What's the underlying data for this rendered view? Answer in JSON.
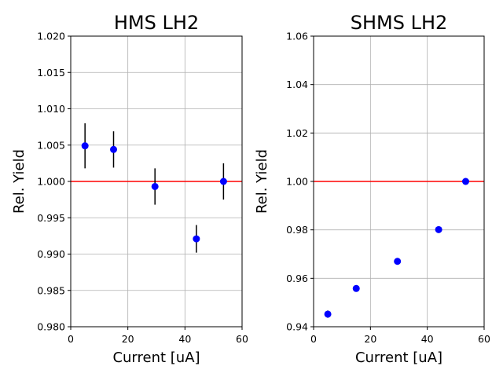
{
  "chart_data": [
    {
      "type": "scatter",
      "title": "HMS LH2",
      "xlabel": "Current [uA]",
      "ylabel": "Rel. Yield",
      "xlim": [
        0,
        60
      ],
      "ylim": [
        0.98,
        1.02
      ],
      "xticks": [
        "0",
        "20",
        "40",
        "60"
      ],
      "yticks": [
        "0.980",
        "0.985",
        "0.990",
        "0.995",
        "1.000",
        "1.005",
        "1.010",
        "1.015",
        "1.020"
      ],
      "grid": true,
      "reference_line": 1.0,
      "points": [
        {
          "x": 5.0,
          "y": 1.0049,
          "err": 0.0031
        },
        {
          "x": 15.0,
          "y": 1.0044,
          "err": 0.0025
        },
        {
          "x": 29.5,
          "y": 0.9993,
          "err": 0.0025
        },
        {
          "x": 44.0,
          "y": 0.9921,
          "err": 0.0019
        },
        {
          "x": 53.5,
          "y": 1.0,
          "err": 0.0025
        }
      ]
    },
    {
      "type": "scatter",
      "title": "SHMS LH2",
      "xlabel": "Current [uA]",
      "ylabel": "Rel. Yield",
      "xlim": [
        0,
        60
      ],
      "ylim": [
        0.94,
        1.06
      ],
      "xticks": [
        "0",
        "20",
        "40",
        "60"
      ],
      "yticks": [
        "0.94",
        "0.96",
        "0.98",
        "1.00",
        "1.02",
        "1.04",
        "1.06"
      ],
      "grid": true,
      "reference_line": 1.0,
      "points": [
        {
          "x": 5.0,
          "y": 0.9452,
          "err": 0.0015
        },
        {
          "x": 15.0,
          "y": 0.9558,
          "err": 0.0012
        },
        {
          "x": 29.5,
          "y": 0.967,
          "err": 0.0012
        },
        {
          "x": 44.0,
          "y": 0.9801,
          "err": 0.0012
        },
        {
          "x": 53.5,
          "y": 1.0,
          "err": 0.0012
        }
      ]
    }
  ],
  "colors": {
    "marker": "#0000ff",
    "errorbar": "#000000",
    "reference_line": "#ff0000",
    "grid": "#b0b0b0",
    "axes": "#000000"
  }
}
